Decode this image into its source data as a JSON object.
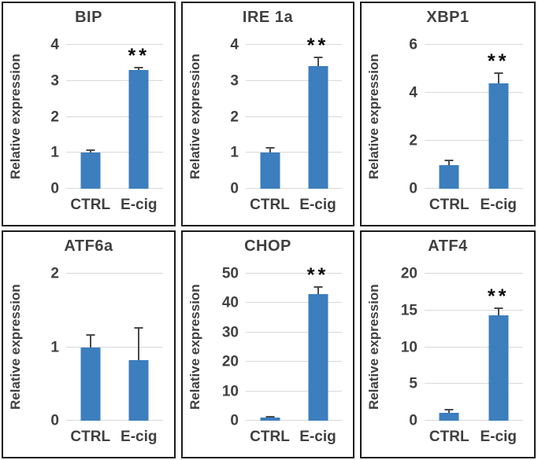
{
  "style": {
    "bar_color": "#3C7EBE",
    "grid_color": "#D9D9D9",
    "axis_text_color": "#404040",
    "error_bar_color": "#4A4A4A",
    "sig_color": "#0A0A0A",
    "panel_border_color": "#1B1B1B",
    "background_color": "#FFFFFF"
  },
  "chart_data": [
    {
      "type": "bar",
      "title": "BIP",
      "ylabel": "Relative expression",
      "xlabel": "",
      "categories": [
        "CTRL",
        "E-cig"
      ],
      "values": [
        1.0,
        3.3
      ],
      "errors": [
        0.1,
        0.08
      ],
      "significance": [
        "",
        "**"
      ],
      "ylim": [
        0,
        4
      ],
      "yticks": [
        0,
        1,
        2,
        3,
        4
      ],
      "grid": true,
      "legend": "none"
    },
    {
      "type": "bar",
      "title": "IRE 1a",
      "ylabel": "Relative expression",
      "xlabel": "",
      "categories": [
        "CTRL",
        "E-cig"
      ],
      "values": [
        1.0,
        3.4
      ],
      "errors": [
        0.15,
        0.27
      ],
      "significance": [
        "",
        "**"
      ],
      "ylim": [
        0,
        4
      ],
      "yticks": [
        0,
        1,
        2,
        3,
        4
      ],
      "grid": true,
      "legend": "none"
    },
    {
      "type": "bar",
      "title": "XBP1",
      "ylabel": "Relative expression",
      "xlabel": "",
      "categories": [
        "CTRL",
        "E-cig"
      ],
      "values": [
        1.0,
        4.4
      ],
      "errors": [
        0.22,
        0.45
      ],
      "significance": [
        "",
        "**"
      ],
      "ylim": [
        0,
        6
      ],
      "yticks": [
        0,
        2,
        4,
        6
      ],
      "grid": true,
      "legend": "none"
    },
    {
      "type": "bar",
      "title": "ATF6a",
      "ylabel": "Relative expression",
      "xlabel": "",
      "categories": [
        "CTRL",
        "E-cig"
      ],
      "values": [
        1.0,
        0.82
      ],
      "errors": [
        0.18,
        0.45
      ],
      "significance": [
        "",
        ""
      ],
      "ylim": [
        0,
        2
      ],
      "yticks": [
        0,
        1,
        2
      ],
      "grid": true,
      "legend": "none"
    },
    {
      "type": "bar",
      "title": "CHOP",
      "ylabel": "Relative expression",
      "xlabel": "",
      "categories": [
        "CTRL",
        "E-cig"
      ],
      "values": [
        1.0,
        43.0
      ],
      "errors": [
        0.5,
        2.8
      ],
      "significance": [
        "",
        "**"
      ],
      "ylim": [
        0,
        50
      ],
      "yticks": [
        0,
        10,
        20,
        30,
        40,
        50
      ],
      "grid": true,
      "legend": "none"
    },
    {
      "type": "bar",
      "title": "ATF4",
      "ylabel": "Relative expression",
      "xlabel": "",
      "categories": [
        "CTRL",
        "E-cig"
      ],
      "values": [
        1.1,
        14.3
      ],
      "errors": [
        0.5,
        1.1
      ],
      "significance": [
        "",
        "**"
      ],
      "ylim": [
        0,
        20
      ],
      "yticks": [
        0,
        5,
        10,
        15,
        20
      ],
      "grid": true,
      "legend": "none"
    }
  ]
}
